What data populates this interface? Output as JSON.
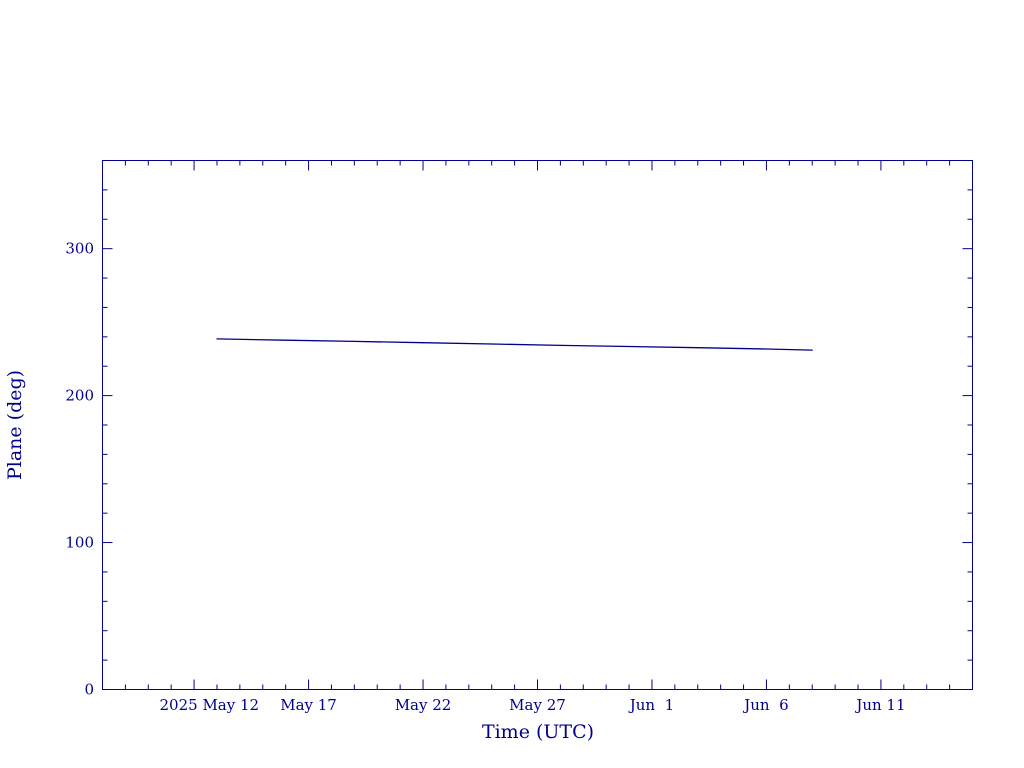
{
  "chart_data": {
    "type": "line",
    "xlabel": "Time (UTC)",
    "ylabel": "Plane (deg)",
    "ylim": [
      0,
      360
    ],
    "xlim": [
      "2025-05-08",
      "2025-06-15"
    ],
    "y_ticks_major": [
      0,
      100,
      200,
      300
    ],
    "y_tick_labels": [
      "0",
      "100",
      "200",
      "300"
    ],
    "x_ticks_major": [
      "2025-05-12",
      "2025-05-17",
      "2025-05-22",
      "2025-05-27",
      "2025-06-01",
      "2025-06-06",
      "2025-06-11"
    ],
    "x_tick_labels": [
      "2025 May 12",
      "May 17",
      "May 22",
      "May 27",
      "Jun  1",
      "Jun  6",
      "Jun 11"
    ],
    "grid": false,
    "colors": {
      "axis": "#00008b",
      "series": "#00008b"
    },
    "series": [
      {
        "x": [
          "2025-05-13",
          "2025-05-16",
          "2025-05-19",
          "2025-05-22",
          "2025-05-25",
          "2025-05-28",
          "2025-05-31",
          "2025-06-03",
          "2025-06-06",
          "2025-06-08"
        ],
        "y": [
          238.6,
          237.7,
          236.9,
          236.0,
          235.1,
          234.2,
          233.4,
          232.6,
          231.7,
          231.0
        ]
      }
    ]
  }
}
